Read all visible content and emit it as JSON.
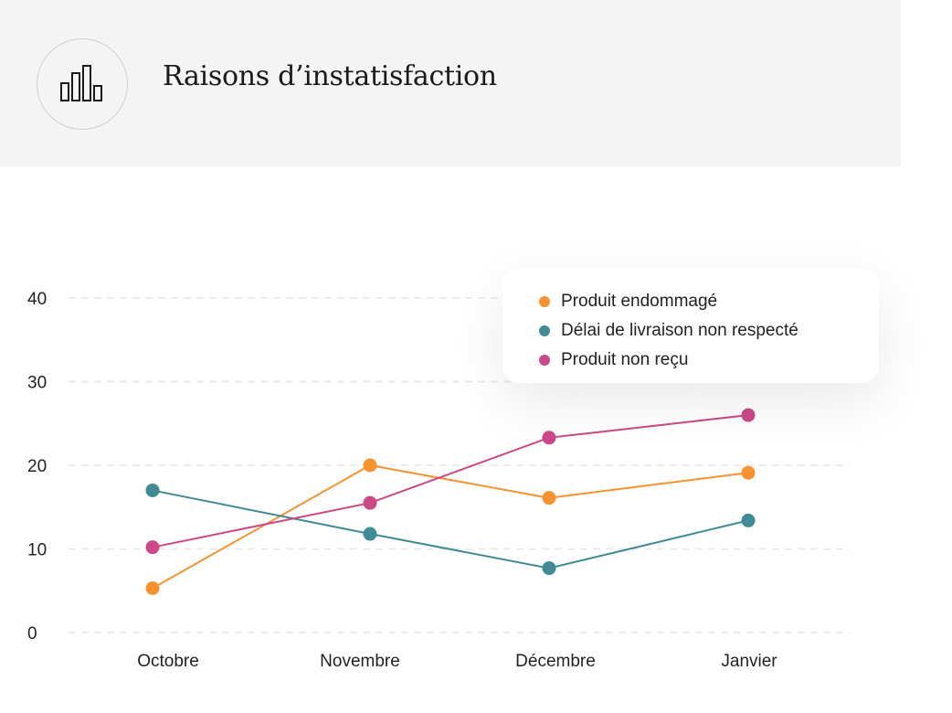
{
  "header": {
    "title": "Raisons d’instatisfaction",
    "icon": "bar-chart-icon"
  },
  "chart_data": {
    "type": "line",
    "title": "",
    "xlabel": "",
    "ylabel": "",
    "categories": [
      "Octobre",
      "Novembre",
      "Décembre",
      "Janvier"
    ],
    "ylim": [
      0,
      40
    ],
    "yticks": [
      0,
      10,
      20,
      30,
      40
    ],
    "grid": true,
    "legend_position": "top-right",
    "series": [
      {
        "name": "Produit endommagé",
        "color": "#f7922f",
        "values": [
          5.3,
          20.0,
          16.1,
          19.1
        ]
      },
      {
        "name": "Délai de livraison non respecté",
        "color": "#3f8c96",
        "values": [
          17.0,
          11.8,
          7.7,
          13.4
        ]
      },
      {
        "name": "Produit non reçu",
        "color": "#cc4886",
        "values": [
          10.2,
          15.5,
          23.3,
          26.0
        ]
      }
    ]
  }
}
